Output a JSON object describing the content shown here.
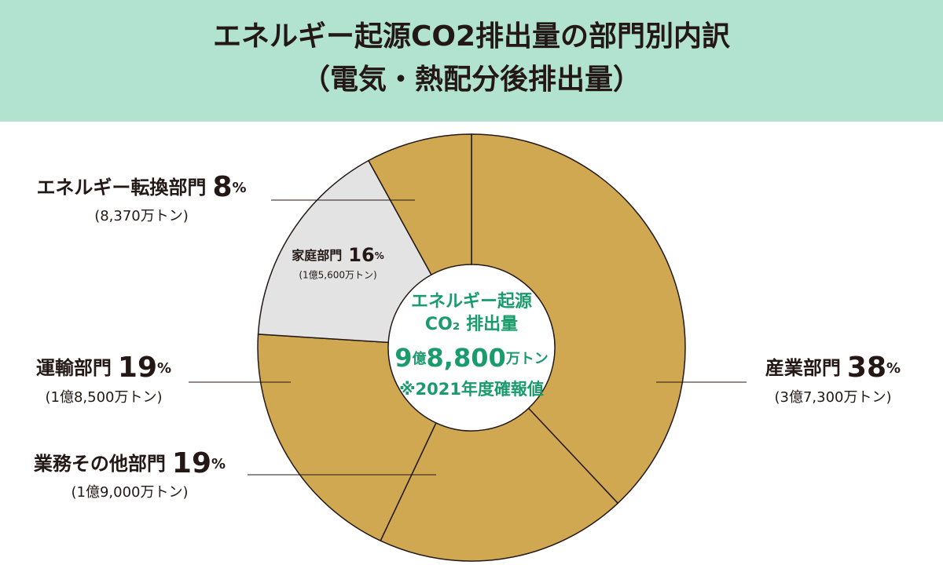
{
  "chart_data": {
    "type": "donut",
    "title": [
      "エネルギー起源CO2排出量の部門別内訳",
      "（電気・熱配分後排出量）"
    ],
    "categories": [
      "産業部門",
      "業務その他部門",
      "運輸部門",
      "家庭部門",
      "エネルギー転換部門"
    ],
    "values": [
      38,
      19,
      19,
      16,
      8
    ],
    "unit": "%",
    "amounts": [
      "(3億7,300万トン)",
      "(1億9,000万トン)",
      "(1億8,500万トン)",
      "(1億5,600万トン)",
      "(8,370万トン)"
    ],
    "colors": [
      "#cfa851",
      "#cfa851",
      "#cfa851",
      "#e3e3e3",
      "#cfa851"
    ],
    "center": {
      "lines": [
        "エネルギー起源",
        "CO₂ 排出量"
      ],
      "total_parts": [
        "9",
        "億",
        "8,800",
        "万トン"
      ],
      "note": "※2021年度確報値"
    }
  }
}
